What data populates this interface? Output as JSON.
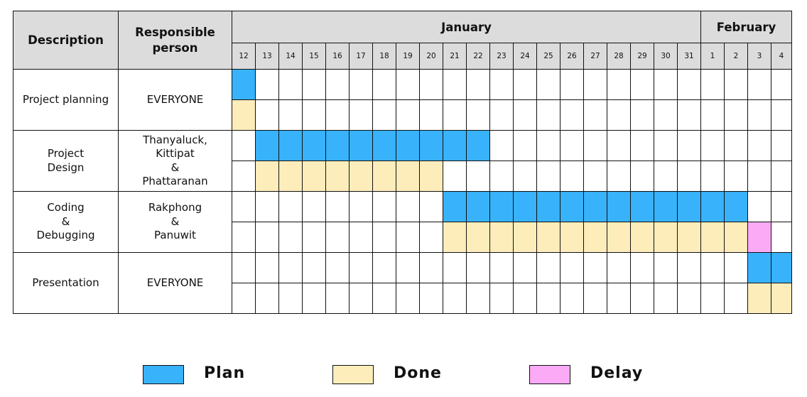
{
  "header": {
    "description": "Description",
    "responsible": "Responsible person",
    "months": [
      {
        "name": "January",
        "days": [
          "12",
          "13",
          "14",
          "15",
          "16",
          "17",
          "18",
          "19",
          "20",
          "21",
          "22",
          "23",
          "24",
          "25",
          "26",
          "27",
          "28",
          "29",
          "30",
          "31"
        ]
      },
      {
        "name": "February",
        "days": [
          "1",
          "2",
          "3",
          "4"
        ]
      }
    ]
  },
  "tasks": [
    {
      "description": "Project planning",
      "responsible": "EVERYONE",
      "plan": [
        0,
        0
      ],
      "done": [
        0,
        0
      ],
      "delay": null
    },
    {
      "description": "Project\nDesign",
      "responsible": "Thanyaluck,\nKittipat\n&\nPhattaranan",
      "plan": [
        1,
        10
      ],
      "done": [
        1,
        8
      ],
      "delay": null
    },
    {
      "description": "Coding\n&\nDebugging",
      "responsible": "Rakphong\n&\nPanuwit",
      "plan": [
        9,
        21
      ],
      "done": [
        9,
        21
      ],
      "delay": [
        22,
        22
      ]
    },
    {
      "description": "Presentation",
      "responsible": "EVERYONE",
      "plan": [
        22,
        23
      ],
      "done": [
        22,
        23
      ],
      "delay": null
    }
  ],
  "legend": [
    {
      "label": "Plan",
      "color": "#38b2fa"
    },
    {
      "label": "Done",
      "color": "#fdedbb"
    },
    {
      "label": "Delay",
      "color": "#fbaaf6"
    }
  ],
  "chart_data": {
    "type": "table",
    "columns": [
      "12",
      "13",
      "14",
      "15",
      "16",
      "17",
      "18",
      "19",
      "20",
      "21",
      "22",
      "23",
      "24",
      "25",
      "26",
      "27",
      "28",
      "29",
      "30",
      "31",
      "1",
      "2",
      "3",
      "4"
    ],
    "rows": [
      {
        "task": "Project planning",
        "plan": "12 Jan",
        "done": "12 Jan"
      },
      {
        "task": "Project Design",
        "plan": "13–22 Jan",
        "done": "13–20 Jan"
      },
      {
        "task": "Coding & Debugging",
        "plan": "21 Jan – 2 Feb",
        "done": "21 Jan – 2 Feb",
        "delay": "3 Feb"
      },
      {
        "task": "Presentation",
        "plan": "3–4 Feb",
        "done": "3–4 Feb"
      }
    ]
  }
}
